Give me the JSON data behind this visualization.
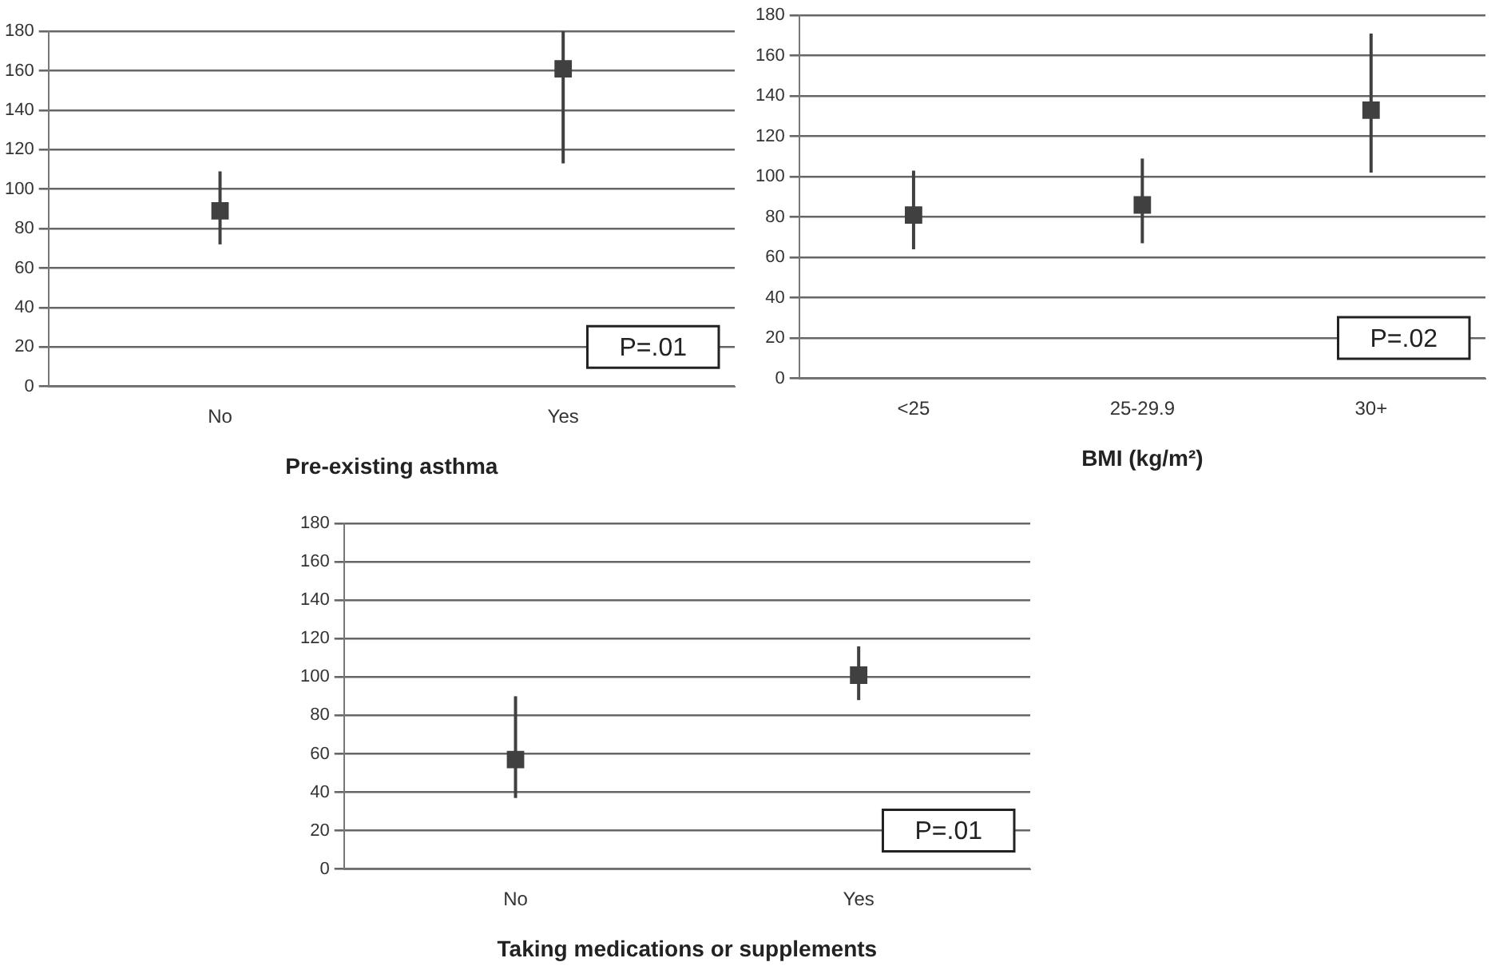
{
  "chart_data": [
    {
      "type": "scatter",
      "xlabel": "Pre-existing asthma",
      "categories": [
        "No",
        "Yes"
      ],
      "values": [
        89,
        161
      ],
      "errors": [
        [
          72,
          109
        ],
        [
          113,
          180
        ]
      ],
      "color": "#404040",
      "marker": "square",
      "ylim": [
        0,
        180
      ],
      "yticks": [
        0,
        20,
        40,
        60,
        80,
        100,
        120,
        140,
        160,
        180
      ],
      "grid": "y",
      "annotations": [
        "P=.01"
      ]
    },
    {
      "type": "scatter",
      "xlabel": "BMI (kg/m²)",
      "categories": [
        "<25",
        "25-29.9",
        "30+"
      ],
      "values": [
        81,
        86,
        133
      ],
      "errors": [
        [
          64,
          103
        ],
        [
          67,
          109
        ],
        [
          102,
          171
        ]
      ],
      "color": "#404040",
      "marker": "square",
      "ylim": [
        0,
        180
      ],
      "yticks": [
        0,
        20,
        40,
        60,
        80,
        100,
        120,
        140,
        160,
        180
      ],
      "grid": "y",
      "annotations": [
        "P=.02"
      ]
    },
    {
      "type": "scatter",
      "xlabel": "Taking medications or supplements",
      "categories": [
        "No",
        "Yes"
      ],
      "values": [
        57,
        101
      ],
      "errors": [
        [
          37,
          90
        ],
        [
          88,
          116
        ]
      ],
      "color": "#404040",
      "marker": "square",
      "ylim": [
        0,
        180
      ],
      "yticks": [
        0,
        20,
        40,
        60,
        80,
        100,
        120,
        140,
        160,
        180
      ],
      "grid": "y",
      "annotations": [
        "P=.01"
      ]
    }
  ]
}
